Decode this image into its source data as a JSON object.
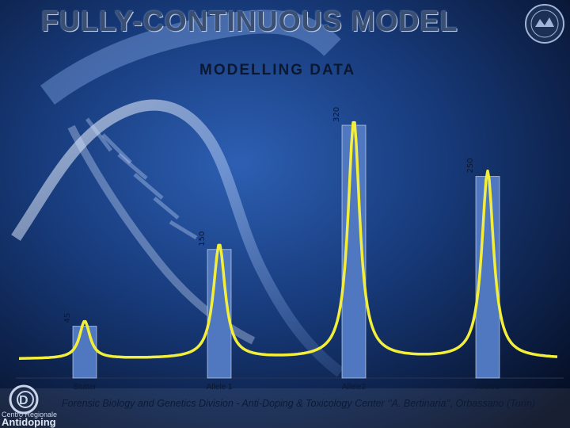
{
  "header": {
    "title": "FULLY-CONTINUOUS MODEL",
    "subtitle": "MODELLING DATA"
  },
  "footer": {
    "text": "Forensic Biology  and Genetics Division - Anti-Doping & Toxicology Center ‘’A. Bertinaria’’, Orbassano (Turin)"
  },
  "logo": {
    "line1": "Centro Regionale",
    "line2": "Antidoping"
  },
  "colors": {
    "bar": "#4f78c0",
    "curve": "#f3ee3a",
    "baseline": "#2a3550",
    "text": "#0b1830"
  },
  "chart_data": {
    "type": "bar",
    "categories": [
      "Stutter",
      "Allele 1",
      "Allele2",
      "Allele3"
    ],
    "values": [
      45,
      150,
      320,
      250
    ],
    "data_labels": [
      "45",
      "150",
      "320",
      "250"
    ],
    "overlay": "peak-curve",
    "ylim": [
      0,
      320
    ],
    "grid": false,
    "legend": "none"
  }
}
